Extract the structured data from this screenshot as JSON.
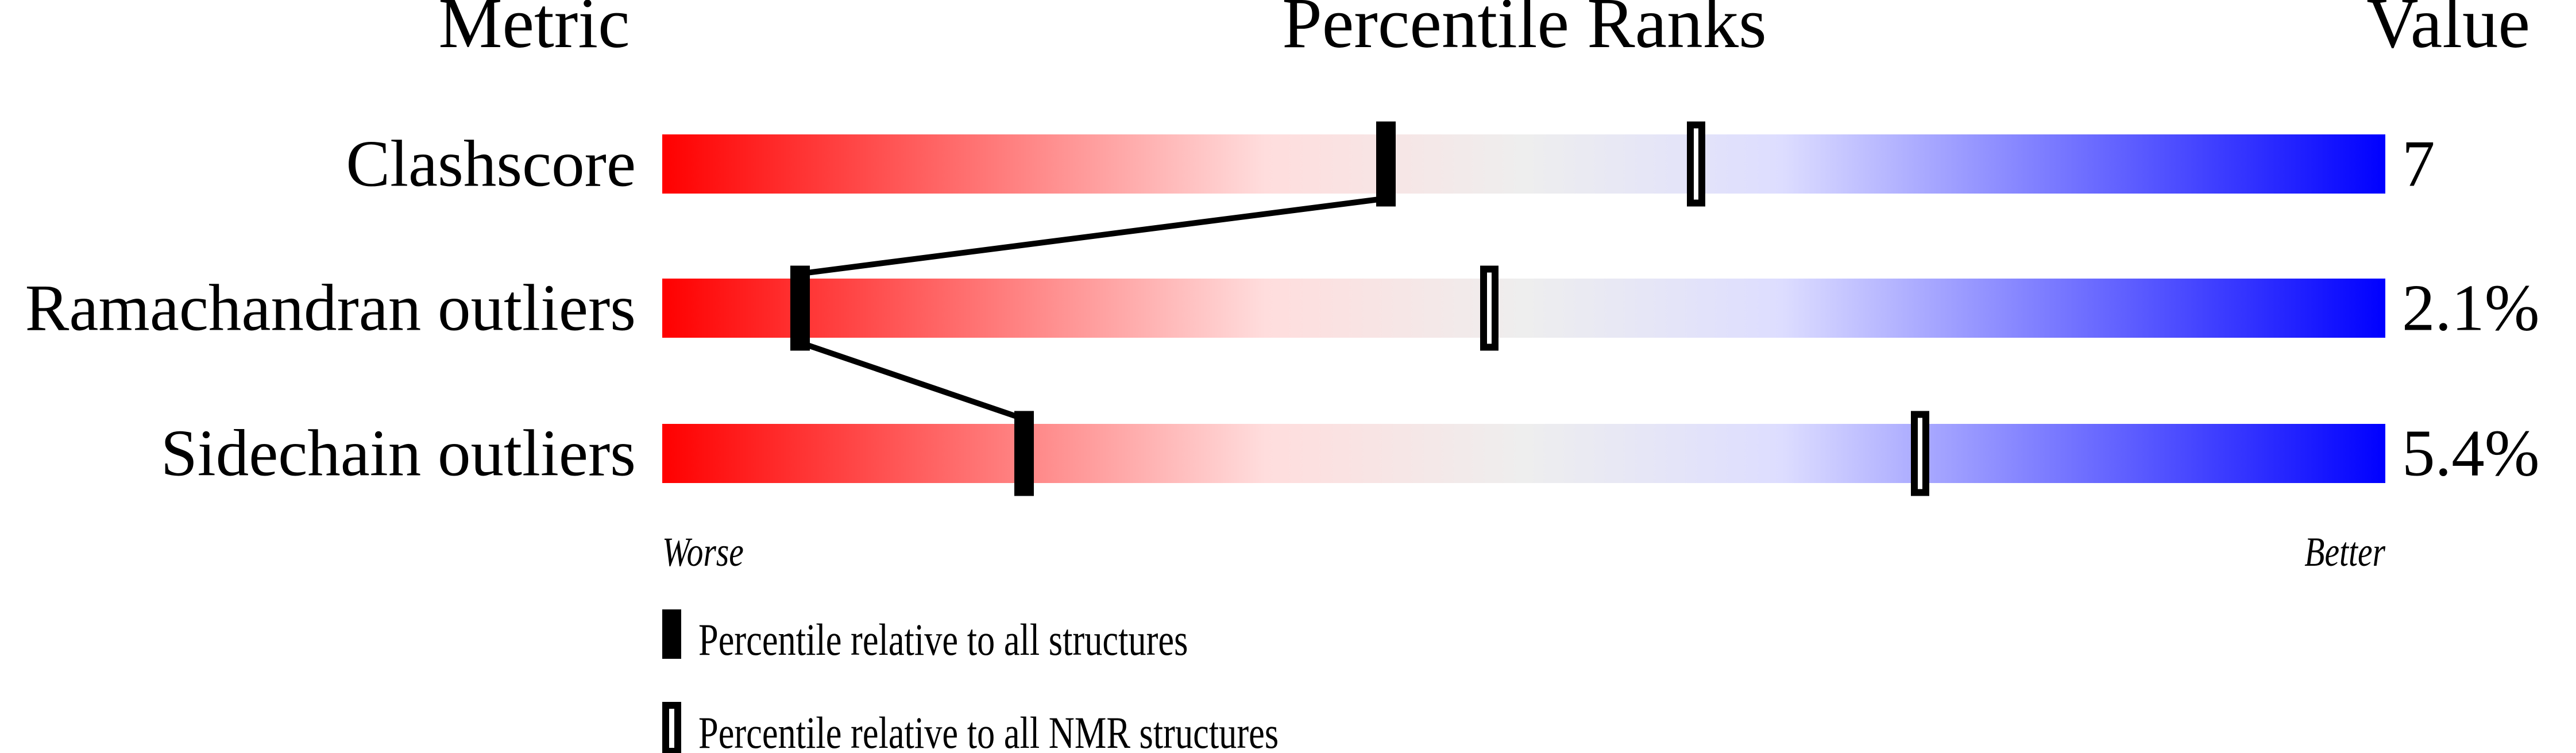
{
  "chart_data": {
    "type": "percentile-rank-bars",
    "headers": {
      "metric": "Metric",
      "ranks": "Percentile Ranks",
      "value": "Value"
    },
    "xlim": [
      0,
      100
    ],
    "axis_labels": {
      "left": "Worse",
      "right": "Better"
    },
    "gradient_colors": [
      "#ff0000",
      "#ffdddd",
      "#eeeeee",
      "#ddddff",
      "#0000ff"
    ],
    "rows": [
      {
        "metric": "Clashscore",
        "value": "7",
        "percentile_all": 42,
        "percentile_nmr": 60
      },
      {
        "metric": "Ramachandran outliers",
        "value": "2.1%",
        "percentile_all": 8,
        "percentile_nmr": 48
      },
      {
        "metric": "Sidechain outliers",
        "value": "5.4%",
        "percentile_all": 21,
        "percentile_nmr": 73
      }
    ],
    "legend": [
      {
        "marker": "filled",
        "label": "Percentile relative to all structures"
      },
      {
        "marker": "open",
        "label": "Percentile relative to all NMR structures"
      }
    ]
  }
}
